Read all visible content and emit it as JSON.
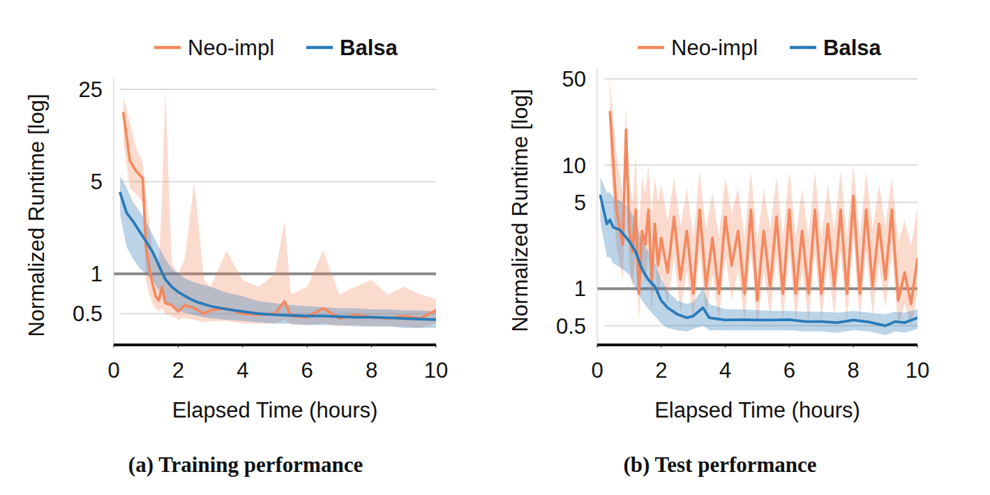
{
  "chart_data": [
    {
      "type": "line",
      "title": "(a) Training performance",
      "x_label": "Elapsed Time (hours)",
      "y_label": "Normalized Runtime [log]",
      "log": "y",
      "grid": true,
      "legend": "top",
      "reference_y": 1,
      "xlim": [
        0,
        10
      ],
      "xticks": [
        0,
        2,
        4,
        6,
        8,
        10
      ],
      "ylim": [
        0.29,
        30
      ],
      "yticks": [
        0.5,
        1,
        5,
        25
      ],
      "series": [
        {
          "name": "Neo-impl",
          "color": "#f4895f",
          "x": [
            0.3,
            0.5,
            0.7,
            0.9,
            1.0,
            1.1,
            1.2,
            1.3,
            1.4,
            1.5,
            1.6,
            1.8,
            2.0,
            2.2,
            2.5,
            2.8,
            3.0,
            3.5,
            4.0,
            4.5,
            5.0,
            5.3,
            5.5,
            6.0,
            6.5,
            7.0,
            7.5,
            8.0,
            8.5,
            9.0,
            9.5,
            10.0
          ],
          "values": [
            16.5,
            7.2,
            6.0,
            5.3,
            1.6,
            1.1,
            0.85,
            0.68,
            0.63,
            0.8,
            0.6,
            0.58,
            0.52,
            0.58,
            0.55,
            0.5,
            0.53,
            0.55,
            0.5,
            0.49,
            0.5,
            0.62,
            0.48,
            0.47,
            0.55,
            0.46,
            0.49,
            0.47,
            0.46,
            0.48,
            0.46,
            0.53
          ],
          "upper": [
            22,
            14,
            9,
            7,
            4,
            2.5,
            1.5,
            1.2,
            1.2,
            4,
            25,
            1.2,
            1.0,
            1.3,
            5,
            0.9,
            0.8,
            1.5,
            0.9,
            0.8,
            1.0,
            2.5,
            0.7,
            0.8,
            1.5,
            0.7,
            0.8,
            0.9,
            0.7,
            0.8,
            0.7,
            0.65
          ],
          "lower": [
            10,
            4.5,
            4.0,
            3.5,
            0.9,
            0.7,
            0.6,
            0.55,
            0.52,
            0.55,
            0.5,
            0.48,
            0.45,
            0.46,
            0.45,
            0.43,
            0.44,
            0.44,
            0.42,
            0.42,
            0.42,
            0.45,
            0.41,
            0.41,
            0.42,
            0.4,
            0.41,
            0.4,
            0.4,
            0.4,
            0.39,
            0.42
          ]
        },
        {
          "name": "Balsa",
          "color": "#2a7ab8",
          "x": [
            0.2,
            0.4,
            0.6,
            0.8,
            1.0,
            1.2,
            1.4,
            1.6,
            1.8,
            2.0,
            2.3,
            2.6,
            3.0,
            3.5,
            4.0,
            4.5,
            5.0,
            5.5,
            6.0,
            6.5,
            7.0,
            7.5,
            8.0,
            8.5,
            9.0,
            9.5,
            10.0
          ],
          "values": [
            4.1,
            2.9,
            2.5,
            2.1,
            1.77,
            1.48,
            1.16,
            0.91,
            0.8,
            0.73,
            0.66,
            0.61,
            0.57,
            0.54,
            0.52,
            0.5,
            0.49,
            0.485,
            0.48,
            0.48,
            0.475,
            0.47,
            0.47,
            0.465,
            0.46,
            0.455,
            0.45
          ],
          "upper": [
            5.5,
            4.5,
            3.5,
            3.0,
            2.5,
            2.0,
            1.6,
            1.3,
            1.1,
            1.0,
            0.9,
            0.85,
            0.8,
            0.72,
            0.68,
            0.62,
            0.6,
            0.58,
            0.57,
            0.56,
            0.55,
            0.55,
            0.54,
            0.54,
            0.53,
            0.53,
            0.52
          ],
          "lower": [
            2.8,
            1.6,
            1.3,
            1.1,
            1.0,
            0.9,
            0.75,
            0.62,
            0.57,
            0.53,
            0.5,
            0.48,
            0.46,
            0.45,
            0.44,
            0.43,
            0.42,
            0.42,
            0.41,
            0.41,
            0.41,
            0.4,
            0.4,
            0.4,
            0.39,
            0.39,
            0.39
          ]
        }
      ]
    },
    {
      "type": "line",
      "title": "(b) Test performance",
      "x_label": "Elapsed Time (hours)",
      "y_label": "Normalized Runtime [log]",
      "log": "y",
      "grid": true,
      "legend": "top",
      "reference_y": 1,
      "xlim": [
        0,
        10
      ],
      "xticks": [
        0,
        2,
        4,
        6,
        8,
        10
      ],
      "ylim": [
        0.35,
        60
      ],
      "yticks": [
        0.5,
        1,
        5,
        10,
        50
      ],
      "series": [
        {
          "name": "Neo-impl",
          "color": "#f4895f",
          "x": [
            0.4,
            0.6,
            0.8,
            0.9,
            1.0,
            1.1,
            1.2,
            1.3,
            1.4,
            1.5,
            1.6,
            1.7,
            1.8,
            1.9,
            2.0,
            2.2,
            2.4,
            2.6,
            2.8,
            3.0,
            3.2,
            3.4,
            3.6,
            3.8,
            4.0,
            4.2,
            4.4,
            4.6,
            4.8,
            5.0,
            5.2,
            5.4,
            5.6,
            5.8,
            6.0,
            6.2,
            6.4,
            6.6,
            6.8,
            7.0,
            7.2,
            7.4,
            7.6,
            7.8,
            8.0,
            8.2,
            8.4,
            8.6,
            8.8,
            9.0,
            9.2,
            9.4,
            9.6,
            9.8,
            10.0
          ],
          "values": [
            26.9,
            4.35,
            2.27,
            19.4,
            2.94,
            1.99,
            4.35,
            0.91,
            2.94,
            2.27,
            4.35,
            1.18,
            3.35,
            1.54,
            2.58,
            1.35,
            3.82,
            1.18,
            2.94,
            0.91,
            4.35,
            1.04,
            2.58,
            0.91,
            3.82,
            1.54,
            2.94,
            0.91,
            4.35,
            0.8,
            2.94,
            1.04,
            3.82,
            0.91,
            4.35,
            0.91,
            2.94,
            0.91,
            4.35,
            0.91,
            3.35,
            1.04,
            4.35,
            0.91,
            5.64,
            0.91,
            4.35,
            1.04,
            3.35,
            1.18,
            4.35,
            0.8,
            1.35,
            0.75,
            1.75
          ],
          "upper": [
            50,
            12,
            6,
            30,
            8,
            5,
            12,
            3,
            8,
            6,
            10,
            4,
            8,
            5,
            7,
            3.5,
            8,
            3.2,
            6.5,
            2.6,
            9,
            3,
            6,
            2.6,
            8,
            4,
            6.5,
            2.6,
            9,
            2.4,
            6.5,
            3,
            8,
            2.6,
            9,
            2.6,
            6.5,
            2.6,
            9,
            2.6,
            7,
            3,
            9,
            2.6,
            10,
            2.6,
            9,
            3,
            7,
            3.2,
            8,
            2.4,
            3.6,
            2.2,
            4.5
          ],
          "lower": [
            12,
            2.2,
            1.2,
            8,
            1.5,
            1.0,
            2.0,
            0.55,
            1.4,
            1.1,
            2.0,
            0.65,
            1.6,
            0.8,
            1.3,
            0.75,
            1.8,
            0.65,
            1.4,
            0.55,
            2.0,
            0.6,
            1.3,
            0.55,
            1.8,
            0.8,
            1.4,
            0.55,
            2.0,
            0.5,
            1.4,
            0.6,
            1.8,
            0.55,
            2.0,
            0.55,
            1.4,
            0.55,
            2.0,
            0.55,
            1.6,
            0.6,
            2.0,
            0.55,
            2.6,
            0.55,
            2.0,
            0.6,
            1.6,
            0.7,
            2.0,
            0.5,
            0.75,
            0.5,
            0.9
          ]
        },
        {
          "name": "Balsa",
          "color": "#2a7ab8",
          "x": [
            0.1,
            0.3,
            0.4,
            0.5,
            0.7,
            1.0,
            1.2,
            1.4,
            1.6,
            1.8,
            2.0,
            2.2,
            2.5,
            2.8,
            3.0,
            3.3,
            3.5,
            4.0,
            4.5,
            5.0,
            5.5,
            6.0,
            6.5,
            7.0,
            7.5,
            8.0,
            8.5,
            9.0,
            9.3,
            9.6,
            10.0
          ],
          "values": [
            5.64,
            3.35,
            3.6,
            3.14,
            3.0,
            2.42,
            1.99,
            1.44,
            1.18,
            1.04,
            0.8,
            0.7,
            0.62,
            0.58,
            0.6,
            0.7,
            0.58,
            0.556,
            0.56,
            0.556,
            0.556,
            0.56,
            0.54,
            0.54,
            0.53,
            0.556,
            0.535,
            0.5,
            0.54,
            0.53,
            0.58
          ],
          "upper": [
            8,
            6,
            6,
            5.5,
            5.2,
            4.5,
            3.5,
            2.4,
            2.0,
            1.6,
            1.2,
            0.95,
            0.8,
            0.75,
            0.78,
            1.0,
            0.75,
            0.68,
            0.68,
            0.67,
            0.66,
            0.66,
            0.65,
            0.65,
            0.64,
            0.66,
            0.64,
            0.62,
            0.65,
            0.64,
            0.68
          ],
          "lower": [
            3.5,
            1.8,
            1.8,
            1.6,
            1.5,
            1.3,
            1.0,
            0.8,
            0.68,
            0.6,
            0.52,
            0.48,
            0.46,
            0.45,
            0.47,
            0.5,
            0.46,
            0.46,
            0.46,
            0.46,
            0.46,
            0.46,
            0.45,
            0.45,
            0.44,
            0.46,
            0.45,
            0.42,
            0.45,
            0.44,
            0.47
          ]
        }
      ]
    }
  ]
}
